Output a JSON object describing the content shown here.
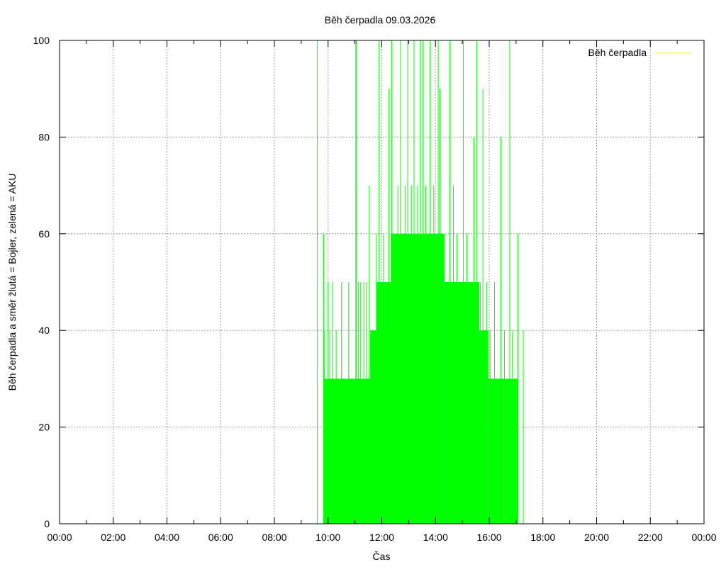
{
  "chart_data": {
    "type": "line",
    "title": "Běh čerpadla 09.03.2026",
    "xlabel": "Čas",
    "ylabel": "Běh čerpadla a směr žlutá = Bojler, zelená = AKU",
    "xlim_hours": [
      0,
      24
    ],
    "ylim": [
      0,
      100
    ],
    "x_tick_labels": [
      "00:00",
      "02:00",
      "04:00",
      "06:00",
      "08:00",
      "10:00",
      "12:00",
      "14:00",
      "16:00",
      "18:00",
      "20:00",
      "22:00",
      "00:00"
    ],
    "y_tick_labels": [
      "0",
      "20",
      "40",
      "60",
      "80",
      "100"
    ],
    "grid": true,
    "legend_position": "top-right",
    "legend": [
      {
        "label": "Běh čerpadla",
        "color": "#ffff00"
      }
    ],
    "series": [
      {
        "color": "#00ff00",
        "description": "pump run intensity over time (AKU)",
        "spikes": [
          [
            "09:36",
            100
          ],
          [
            "09:50",
            60
          ],
          [
            "09:52",
            40
          ],
          [
            "10:00",
            50
          ],
          [
            "10:04",
            40
          ],
          [
            "10:10",
            50
          ],
          [
            "10:18",
            40
          ],
          [
            "10:30",
            50
          ],
          [
            "10:46",
            50
          ],
          [
            "11:02",
            100
          ],
          [
            "11:04",
            100
          ],
          [
            "11:08",
            50
          ],
          [
            "11:12",
            50
          ],
          [
            "11:20",
            50
          ],
          [
            "11:26",
            50
          ],
          [
            "11:32",
            70
          ],
          [
            "11:48",
            60
          ],
          [
            "11:54",
            100
          ],
          [
            "12:04",
            60
          ],
          [
            "12:16",
            90
          ],
          [
            "12:22",
            100
          ],
          [
            "12:36",
            70
          ],
          [
            "12:42",
            100
          ],
          [
            "12:52",
            70
          ],
          [
            "12:58",
            100
          ],
          [
            "13:06",
            70
          ],
          [
            "13:12",
            100
          ],
          [
            "13:20",
            70
          ],
          [
            "13:26",
            100
          ],
          [
            "13:32",
            100
          ],
          [
            "13:38",
            70
          ],
          [
            "13:48",
            100
          ],
          [
            "13:56",
            70
          ],
          [
            "14:06",
            100
          ],
          [
            "14:10",
            90
          ],
          [
            "14:18",
            60
          ],
          [
            "14:32",
            100
          ],
          [
            "14:40",
            70
          ],
          [
            "14:48",
            60
          ],
          [
            "15:02",
            100
          ],
          [
            "15:10",
            60
          ],
          [
            "15:20",
            50
          ],
          [
            "15:26",
            80
          ],
          [
            "15:32",
            100
          ],
          [
            "15:40",
            50
          ],
          [
            "15:46",
            90
          ],
          [
            "15:54",
            50
          ],
          [
            "16:02",
            40
          ],
          [
            "16:12",
            50
          ],
          [
            "16:26",
            80
          ],
          [
            "16:34",
            40
          ],
          [
            "16:46",
            100
          ],
          [
            "16:52",
            40
          ],
          [
            "17:04",
            60
          ],
          [
            "17:16",
            40
          ]
        ],
        "base_levels": [
          {
            "from": "09:50",
            "to": "10:06",
            "level": 30
          },
          {
            "from": "10:06",
            "to": "11:34",
            "level": 30
          },
          {
            "from": "11:34",
            "to": "11:48",
            "level": 40
          },
          {
            "from": "11:48",
            "to": "12:00",
            "level": 50
          },
          {
            "from": "12:00",
            "to": "12:20",
            "level": 50
          },
          {
            "from": "12:20",
            "to": "14:20",
            "level": 60
          },
          {
            "from": "14:20",
            "to": "15:38",
            "level": 50
          },
          {
            "from": "15:38",
            "to": "15:58",
            "level": 40
          },
          {
            "from": "15:58",
            "to": "16:32",
            "level": 30
          },
          {
            "from": "16:32",
            "to": "17:04",
            "level": 30
          }
        ]
      }
    ]
  }
}
